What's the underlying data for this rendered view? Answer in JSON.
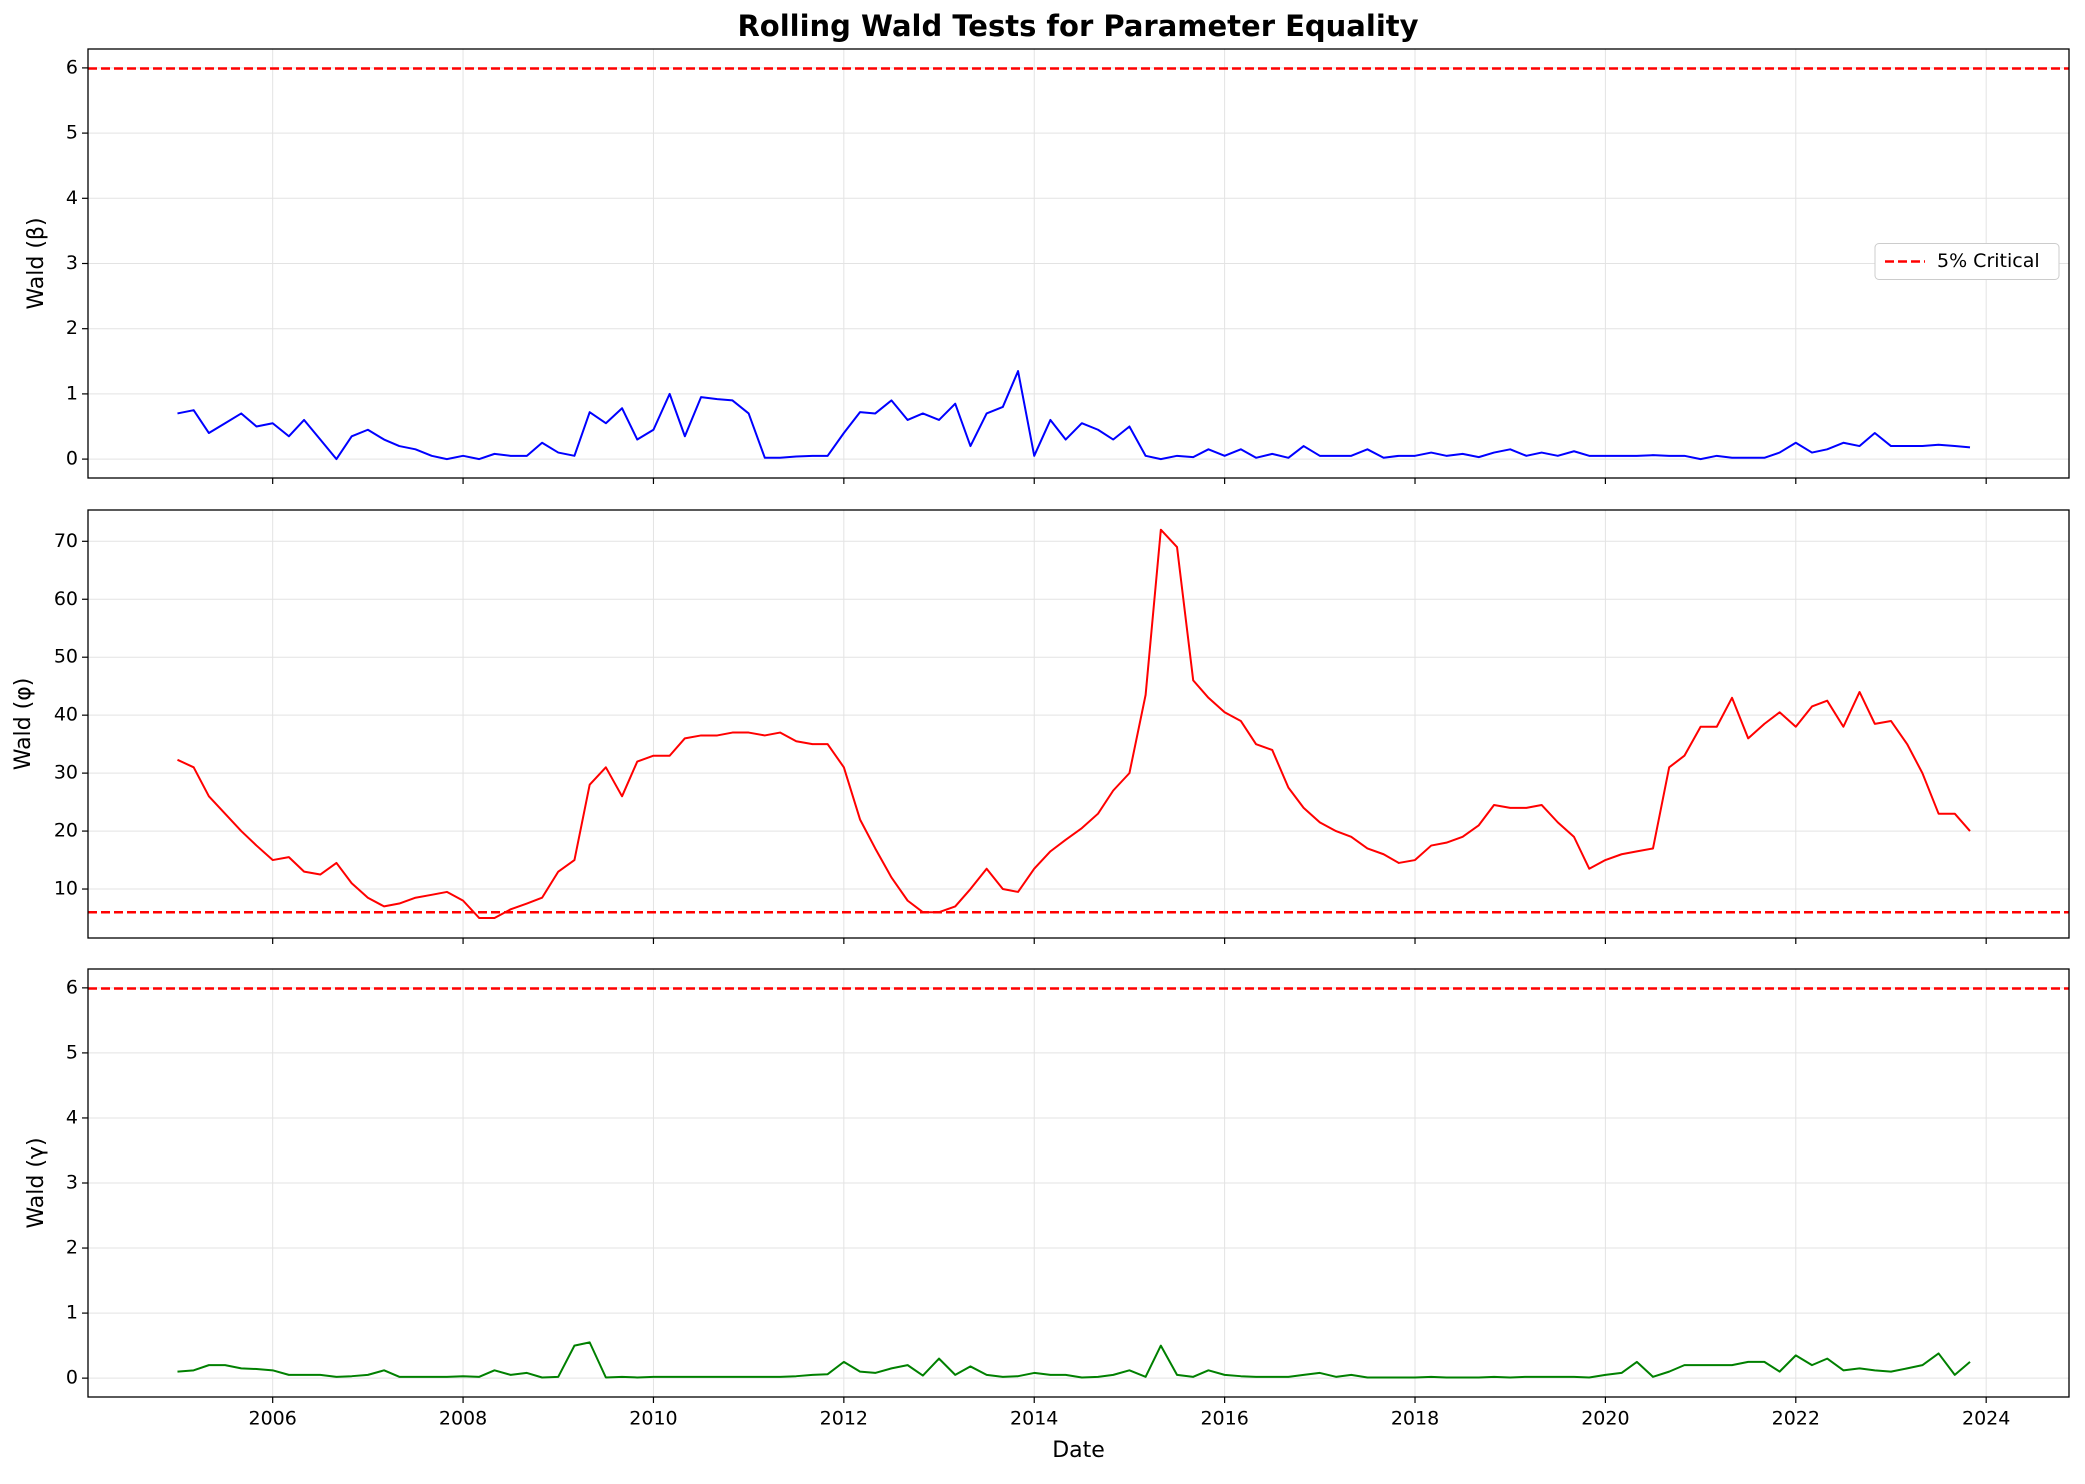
{
  "chart_data": [
    {
      "type": "line",
      "title": "Rolling Wald Tests for Parameter Equality",
      "ylabel": "Wald (β)",
      "x": [
        2005,
        2005.17,
        2005.33,
        2005.5,
        2005.67,
        2005.83,
        2006,
        2006.17,
        2006.33,
        2006.5,
        2006.67,
        2006.83,
        2007,
        2007.17,
        2007.33,
        2007.5,
        2007.67,
        2007.83,
        2008,
        2008.17,
        2008.33,
        2008.5,
        2008.67,
        2008.83,
        2009,
        2009.17,
        2009.33,
        2009.5,
        2009.67,
        2009.83,
        2010,
        2010.17,
        2010.33,
        2010.5,
        2010.67,
        2010.83,
        2011,
        2011.17,
        2011.33,
        2011.5,
        2011.67,
        2011.83,
        2012,
        2012.17,
        2012.33,
        2012.5,
        2012.67,
        2012.83,
        2013,
        2013.17,
        2013.33,
        2013.5,
        2013.67,
        2013.83,
        2014,
        2014.17,
        2014.33,
        2014.5,
        2014.67,
        2014.83,
        2015,
        2015.17,
        2015.33,
        2015.5,
        2015.67,
        2015.83,
        2016,
        2016.17,
        2016.33,
        2016.5,
        2016.67,
        2016.83,
        2017,
        2017.17,
        2017.33,
        2017.5,
        2017.67,
        2017.83,
        2018,
        2018.17,
        2018.33,
        2018.5,
        2018.67,
        2018.83,
        2019,
        2019.17,
        2019.33,
        2019.5,
        2019.67,
        2019.83,
        2020,
        2020.17,
        2020.33,
        2020.5,
        2020.67,
        2020.83,
        2021,
        2021.17,
        2021.33,
        2021.5,
        2021.67,
        2021.83,
        2022,
        2022.17,
        2022.33,
        2022.5,
        2022.67,
        2022.83,
        2023,
        2023.17,
        2023.33,
        2023.5,
        2023.67,
        2023.83
      ],
      "series": [
        {
          "color": "#0000ff",
          "values": [
            0.7,
            0.75,
            0.4,
            0.55,
            0.7,
            0.5,
            0.55,
            0.35,
            0.6,
            0.3,
            0.0,
            0.35,
            0.45,
            0.3,
            0.2,
            0.15,
            0.05,
            0.0,
            0.05,
            0.0,
            0.08,
            0.05,
            0.05,
            0.25,
            0.1,
            0.05,
            0.72,
            0.55,
            0.78,
            0.3,
            0.45,
            1.0,
            0.35,
            0.95,
            0.92,
            0.9,
            0.7,
            0.02,
            0.02,
            0.04,
            0.05,
            0.05,
            0.4,
            0.72,
            0.7,
            0.9,
            0.6,
            0.7,
            0.6,
            0.85,
            0.2,
            0.7,
            0.8,
            1.35,
            0.05,
            0.6,
            0.3,
            0.55,
            0.45,
            0.3,
            0.5,
            0.05,
            0.0,
            0.05,
            0.03,
            0.15,
            0.05,
            0.15,
            0.02,
            0.08,
            0.02,
            0.2,
            0.05,
            0.05,
            0.05,
            0.15,
            0.02,
            0.05,
            0.05,
            0.1,
            0.05,
            0.08,
            0.03,
            0.1,
            0.15,
            0.05,
            0.1,
            0.05,
            0.12,
            0.05,
            0.05,
            0.05,
            0.05,
            0.06,
            0.05,
            0.05,
            0.0,
            0.05,
            0.02,
            0.02,
            0.02,
            0.1,
            0.25,
            0.1,
            0.15,
            0.25,
            0.2,
            0.4,
            0.2,
            0.2,
            0.2,
            0.22,
            0.2,
            0.18
          ]
        }
      ],
      "hlines": [
        {
          "name": "5% Critical",
          "value": 5.99,
          "color": "#ff0000"
        }
      ],
      "legend": "center right",
      "xlim": [
        2004.06,
        2024.87
      ],
      "xticks": [
        2006,
        2008,
        2010,
        2012,
        2014,
        2016,
        2018,
        2020,
        2022,
        2024
      ],
      "ylim": [
        -0.29,
        6.29
      ],
      "yticks": [
        0,
        1,
        2,
        3,
        4,
        5,
        6
      ],
      "grid": true
    },
    {
      "type": "line",
      "ylabel": "Wald (φ)",
      "x": [
        2005,
        2005.17,
        2005.33,
        2005.5,
        2005.67,
        2005.83,
        2006,
        2006.17,
        2006.33,
        2006.5,
        2006.67,
        2006.83,
        2007,
        2007.17,
        2007.33,
        2007.5,
        2007.67,
        2007.83,
        2008,
        2008.17,
        2008.33,
        2008.5,
        2008.67,
        2008.83,
        2009,
        2009.17,
        2009.33,
        2009.5,
        2009.67,
        2009.83,
        2010,
        2010.17,
        2010.33,
        2010.5,
        2010.67,
        2010.83,
        2011,
        2011.17,
        2011.33,
        2011.5,
        2011.67,
        2011.83,
        2012,
        2012.17,
        2012.33,
        2012.5,
        2012.67,
        2012.83,
        2013,
        2013.17,
        2013.33,
        2013.5,
        2013.67,
        2013.83,
        2014,
        2014.17,
        2014.33,
        2014.5,
        2014.67,
        2014.83,
        2015,
        2015.17,
        2015.33,
        2015.5,
        2015.67,
        2015.83,
        2016,
        2016.17,
        2016.33,
        2016.5,
        2016.67,
        2016.83,
        2017,
        2017.17,
        2017.33,
        2017.5,
        2017.67,
        2017.83,
        2018,
        2018.17,
        2018.33,
        2018.5,
        2018.67,
        2018.83,
        2019,
        2019.17,
        2019.33,
        2019.5,
        2019.67,
        2019.83,
        2020,
        2020.17,
        2020.33,
        2020.5,
        2020.67,
        2020.83,
        2021,
        2021.17,
        2021.33,
        2021.5,
        2021.67,
        2021.83,
        2022,
        2022.17,
        2022.33,
        2022.5,
        2022.67,
        2022.83,
        2023,
        2023.17,
        2023.33,
        2023.5,
        2023.67,
        2023.83
      ],
      "series": [
        {
          "color": "#ff0000",
          "values": [
            32.3,
            31,
            26,
            23,
            20,
            17.5,
            15,
            15.5,
            13,
            12.5,
            14.5,
            11,
            8.5,
            7,
            7.5,
            8.5,
            9,
            9.5,
            8,
            5,
            5,
            6.5,
            7.5,
            8.5,
            13,
            15,
            28,
            31,
            26,
            32,
            33,
            33,
            36,
            36.5,
            36.5,
            37,
            37,
            36.5,
            37,
            35.5,
            35,
            35,
            31,
            22,
            17,
            12,
            8,
            6,
            6,
            7,
            10,
            13.5,
            10,
            9.5,
            13.5,
            16.5,
            18.5,
            20.5,
            23,
            27,
            30,
            43.5,
            72,
            69,
            46,
            43,
            40.5,
            39,
            35,
            34,
            27.5,
            24,
            21.5,
            20,
            19,
            17,
            16,
            14.5,
            15,
            17.5,
            18,
            19,
            21,
            24.5,
            24,
            24,
            24.5,
            21.5,
            19,
            13.5,
            15,
            16,
            16.5,
            17,
            31,
            33,
            38,
            38,
            43,
            36,
            38.5,
            40.5,
            38,
            41.5,
            42.5,
            38,
            44,
            38.5,
            39,
            35,
            30,
            23,
            23,
            20
          ]
        }
      ],
      "hlines": [
        {
          "value": 5.99,
          "color": "#ff0000"
        }
      ],
      "xlim": [
        2004.06,
        2024.87
      ],
      "xticks": [
        2006,
        2008,
        2010,
        2012,
        2014,
        2016,
        2018,
        2020,
        2022,
        2024
      ],
      "ylim": [
        1.55,
        75.4
      ],
      "yticks": [
        10,
        20,
        30,
        40,
        50,
        60,
        70
      ],
      "grid": true
    },
    {
      "type": "line",
      "ylabel": "Wald (γ)",
      "xlabel": "Date",
      "x": [
        2005,
        2005.17,
        2005.33,
        2005.5,
        2005.67,
        2005.83,
        2006,
        2006.17,
        2006.33,
        2006.5,
        2006.67,
        2006.83,
        2007,
        2007.17,
        2007.33,
        2007.5,
        2007.67,
        2007.83,
        2008,
        2008.17,
        2008.33,
        2008.5,
        2008.67,
        2008.83,
        2009,
        2009.17,
        2009.33,
        2009.5,
        2009.67,
        2009.83,
        2010,
        2010.17,
        2010.33,
        2010.5,
        2010.67,
        2010.83,
        2011,
        2011.17,
        2011.33,
        2011.5,
        2011.67,
        2011.83,
        2012,
        2012.17,
        2012.33,
        2012.5,
        2012.67,
        2012.83,
        2013,
        2013.17,
        2013.33,
        2013.5,
        2013.67,
        2013.83,
        2014,
        2014.17,
        2014.33,
        2014.5,
        2014.67,
        2014.83,
        2015,
        2015.17,
        2015.33,
        2015.5,
        2015.67,
        2015.83,
        2016,
        2016.17,
        2016.33,
        2016.5,
        2016.67,
        2016.83,
        2017,
        2017.17,
        2017.33,
        2017.5,
        2017.67,
        2017.83,
        2018,
        2018.17,
        2018.33,
        2018.5,
        2018.67,
        2018.83,
        2019,
        2019.17,
        2019.33,
        2019.5,
        2019.67,
        2019.83,
        2020,
        2020.17,
        2020.33,
        2020.5,
        2020.67,
        2020.83,
        2021,
        2021.17,
        2021.33,
        2021.5,
        2021.67,
        2021.83,
        2022,
        2022.17,
        2022.33,
        2022.5,
        2022.67,
        2022.83,
        2023,
        2023.17,
        2023.33,
        2023.5,
        2023.67,
        2023.83
      ],
      "series": [
        {
          "color": "#008000",
          "values": [
            0.1,
            0.12,
            0.2,
            0.2,
            0.15,
            0.14,
            0.12,
            0.05,
            0.05,
            0.05,
            0.02,
            0.03,
            0.05,
            0.12,
            0.02,
            0.02,
            0.02,
            0.02,
            0.03,
            0.02,
            0.12,
            0.05,
            0.08,
            0.01,
            0.02,
            0.5,
            0.55,
            0.01,
            0.02,
            0.01,
            0.02,
            0.02,
            0.02,
            0.02,
            0.02,
            0.02,
            0.02,
            0.02,
            0.02,
            0.03,
            0.05,
            0.06,
            0.25,
            0.1,
            0.08,
            0.15,
            0.2,
            0.04,
            0.3,
            0.05,
            0.18,
            0.05,
            0.02,
            0.03,
            0.08,
            0.05,
            0.05,
            0.01,
            0.02,
            0.05,
            0.12,
            0.02,
            0.5,
            0.05,
            0.02,
            0.12,
            0.05,
            0.03,
            0.02,
            0.02,
            0.02,
            0.05,
            0.08,
            0.02,
            0.05,
            0.01,
            0.01,
            0.01,
            0.01,
            0.02,
            0.01,
            0.01,
            0.01,
            0.02,
            0.01,
            0.02,
            0.02,
            0.02,
            0.02,
            0.01,
            0.05,
            0.08,
            0.25,
            0.02,
            0.1,
            0.2,
            0.2,
            0.2,
            0.2,
            0.25,
            0.25,
            0.1,
            0.35,
            0.2,
            0.3,
            0.12,
            0.15,
            0.12,
            0.1,
            0.15,
            0.2,
            0.38,
            0.05,
            0.25
          ]
        }
      ],
      "hlines": [
        {
          "value": 5.99,
          "color": "#ff0000"
        }
      ],
      "xlim": [
        2004.06,
        2024.87
      ],
      "xticks": [
        2006,
        2008,
        2010,
        2012,
        2014,
        2016,
        2018,
        2020,
        2022,
        2024
      ],
      "ylim": [
        -0.29,
        6.29
      ],
      "yticks": [
        0,
        1,
        2,
        3,
        4,
        5,
        6
      ],
      "grid": true
    }
  ]
}
